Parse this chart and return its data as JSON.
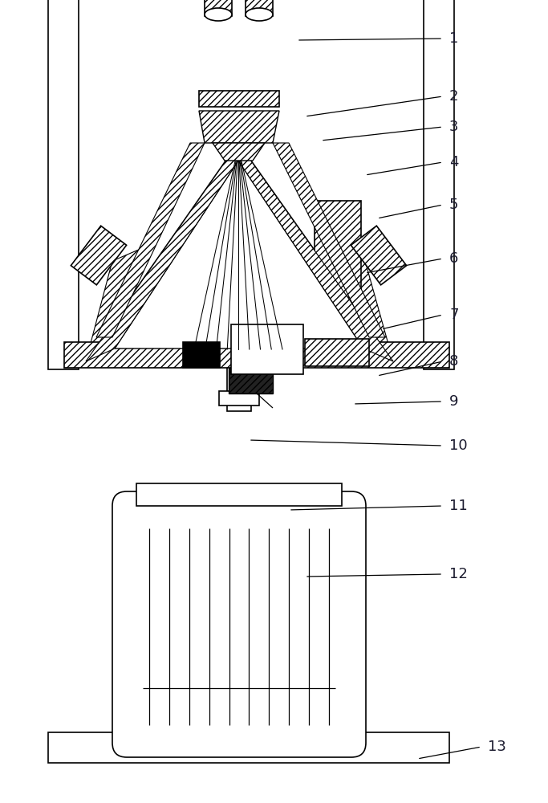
{
  "bg_color": "#ffffff",
  "lc": "#000000",
  "fig_w": 6.83,
  "fig_h": 10.0,
  "labels": [
    [
      "1",
      370,
      50,
      560,
      48
    ],
    [
      "2",
      380,
      145,
      560,
      120
    ],
    [
      "3",
      400,
      175,
      560,
      158
    ],
    [
      "4",
      455,
      218,
      560,
      202
    ],
    [
      "5",
      470,
      272,
      560,
      255
    ],
    [
      "6",
      455,
      340,
      560,
      322
    ],
    [
      "7",
      475,
      410,
      560,
      392
    ],
    [
      "8",
      470,
      468,
      560,
      450
    ],
    [
      "9",
      440,
      503,
      560,
      500
    ],
    [
      "10",
      310,
      548,
      560,
      555
    ],
    [
      "11",
      360,
      635,
      560,
      630
    ],
    [
      "12",
      380,
      718,
      560,
      715
    ],
    [
      "13",
      520,
      945,
      608,
      930
    ]
  ]
}
